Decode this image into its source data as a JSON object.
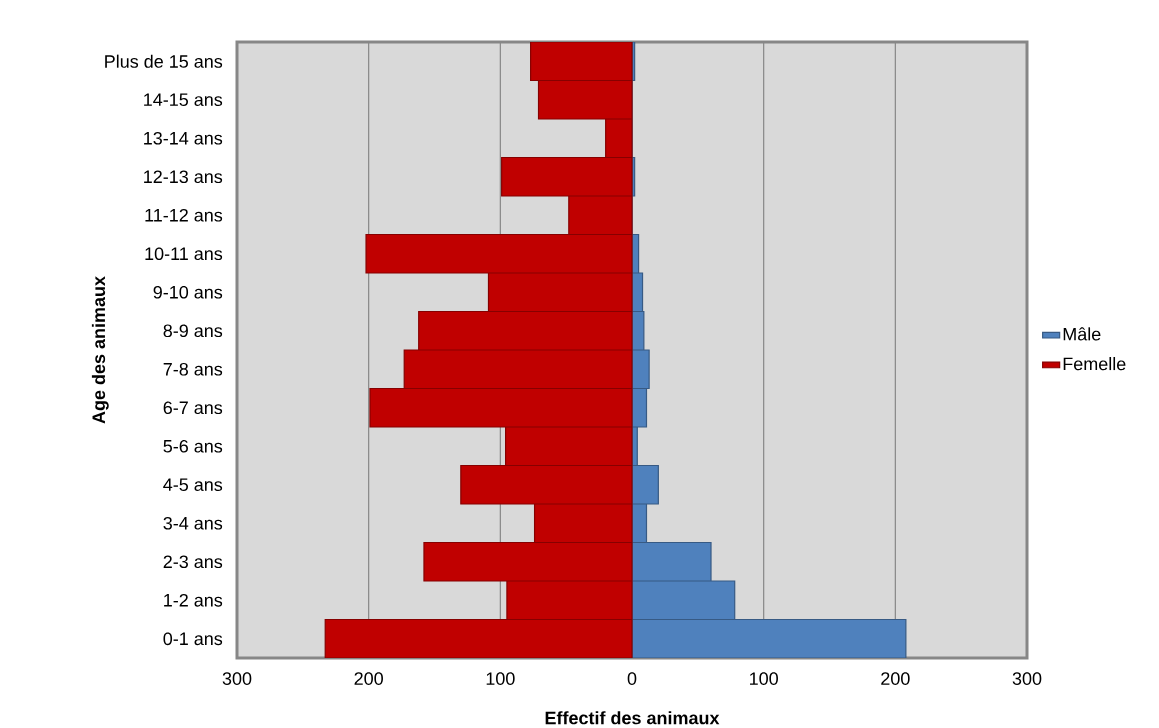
{
  "chart_data": {
    "type": "bar",
    "orientation": "horizontal",
    "xlabel": "Effectif des animaux",
    "ylabel": "Age des animaux",
    "categories": [
      "Plus de 15 ans",
      "14-15 ans",
      "13-14 ans",
      "12-13 ans",
      "11-12 ans",
      "10-11 ans",
      "9-10 ans",
      "8-9 ans",
      "7-8 ans",
      "6-7 ans",
      "5-6 ans",
      "4-5 ans",
      "3-4 ans",
      "2-3 ans",
      "1-2 ans",
      "0-1 ans"
    ],
    "series": [
      {
        "name": "Mâle",
        "color": "#4f81bd",
        "values": [
          2,
          0,
          0,
          2,
          0,
          5,
          8,
          9,
          13,
          11,
          4,
          20,
          11,
          60,
          78,
          208
        ]
      },
      {
        "name": "Femelle",
        "color": "#c00000",
        "values": [
          -77,
          -71,
          -20,
          -99,
          -48,
          -202,
          -109,
          -162,
          -173,
          -199,
          -96,
          -130,
          -74,
          -158,
          -95,
          -233
        ]
      }
    ],
    "xlim": [
      -300,
      300
    ],
    "xticks": [
      {
        "value": -300,
        "label": "300"
      },
      {
        "value": -200,
        "label": "200"
      },
      {
        "value": -100,
        "label": "100"
      },
      0,
      100,
      200,
      300
    ],
    "grid": "x",
    "legend": "right",
    "stacked": true
  }
}
